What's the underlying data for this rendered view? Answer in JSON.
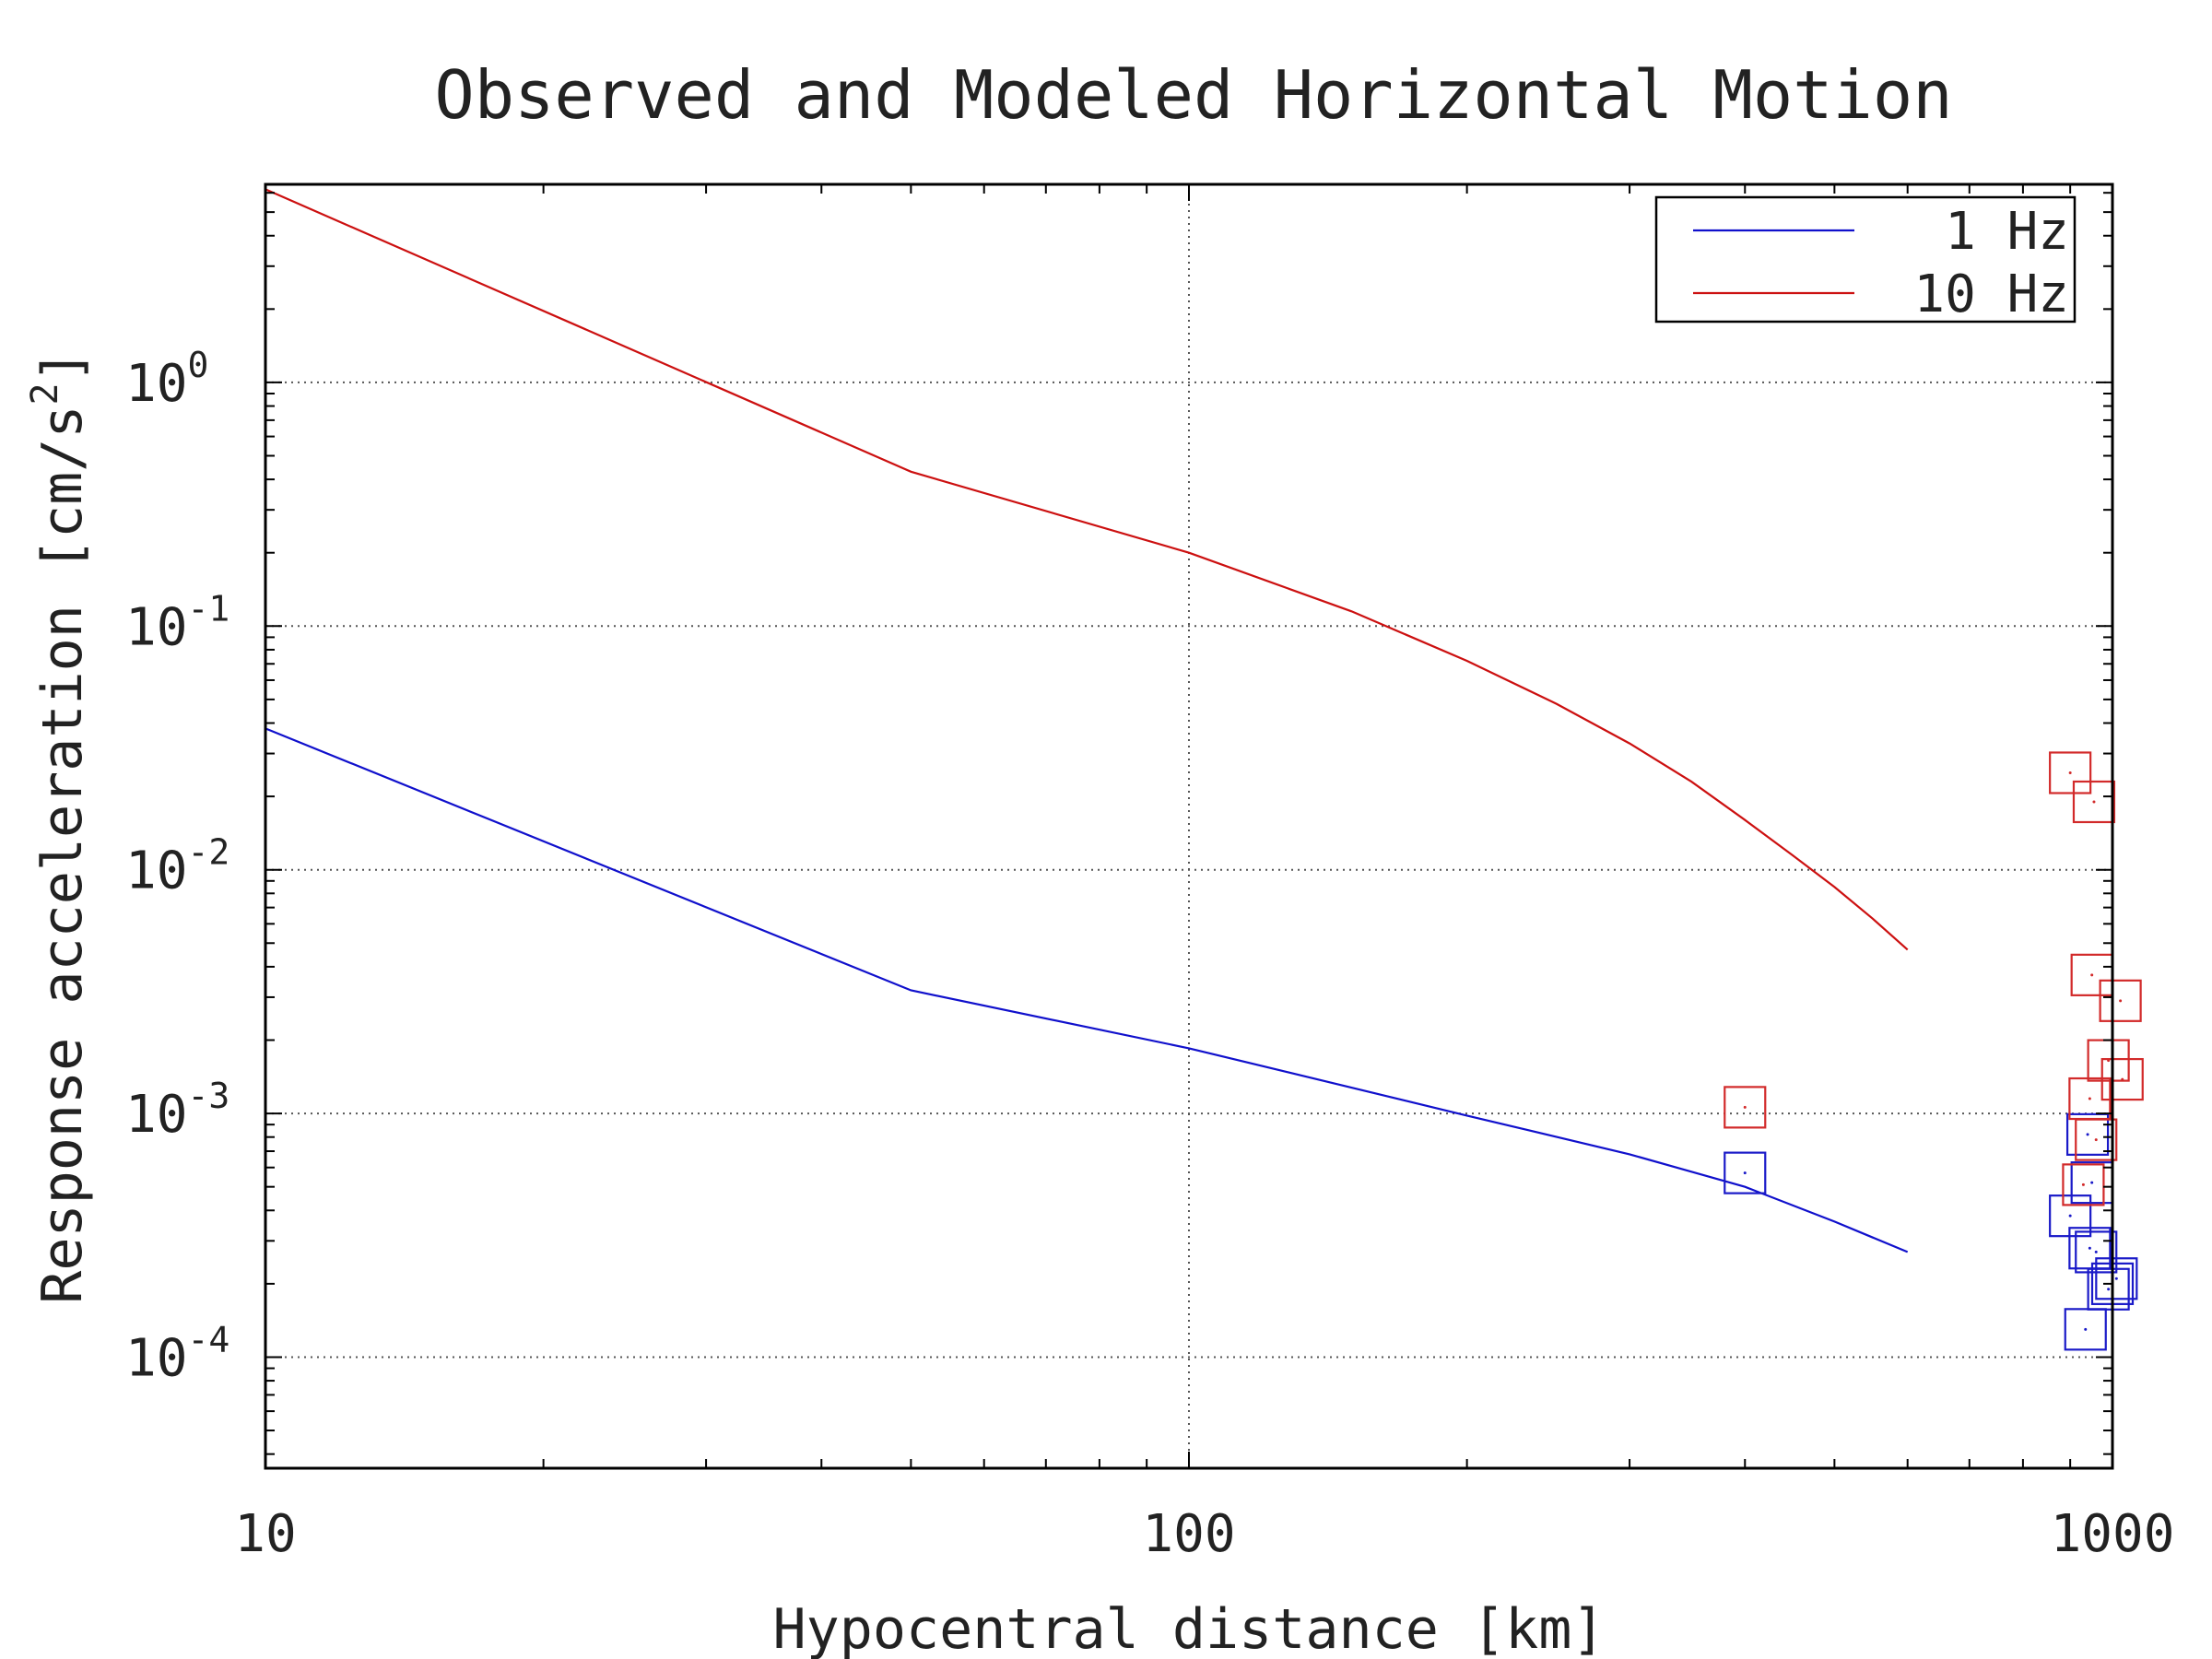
{
  "chart_data": {
    "type": "line",
    "title": "Observed and Modeled Horizontal Motion",
    "xlabel": "Hypocentral distance [km]",
    "ylabel_main": "Response acceleration [cm/s",
    "ylabel_exp": "2",
    "ylabel_tail": "]",
    "xscale": "log",
    "yscale": "log",
    "xlim": [
      10,
      1000
    ],
    "ylim": [
      3.5e-05,
      6.5
    ],
    "grid": true,
    "legend_position": "top-right",
    "x_ticks": [
      {
        "value": 10,
        "label": "10"
      },
      {
        "value": 100,
        "label": "100"
      },
      {
        "value": 1000,
        "label": "1000"
      }
    ],
    "y_ticks": [
      {
        "value": 1,
        "base": "10",
        "exp": "0"
      },
      {
        "value": 0.1,
        "base": "10",
        "exp": "-1"
      },
      {
        "value": 0.01,
        "base": "10",
        "exp": "-2"
      },
      {
        "value": 0.001,
        "base": "10",
        "exp": "-3"
      },
      {
        "value": 0.0001,
        "base": "10",
        "exp": "-4"
      }
    ],
    "series": [
      {
        "name": "1 Hz",
        "color": "#1010cc",
        "x": [
          10,
          50,
          100,
          200,
          300,
          400,
          500,
          600
        ],
        "y": [
          0.038,
          0.0032,
          0.00185,
          0.00098,
          0.00068,
          0.0005,
          0.00036,
          0.00027
        ]
      },
      {
        "name": "10 Hz",
        "color": "#cc1010",
        "x": [
          10,
          50,
          100,
          150,
          200,
          250,
          300,
          350,
          400,
          450,
          500,
          550,
          600
        ],
        "y": [
          6.2,
          0.43,
          0.2,
          0.115,
          0.072,
          0.048,
          0.033,
          0.023,
          0.016,
          0.0115,
          0.0085,
          0.0063,
          0.0047
        ]
      }
    ],
    "observations": [
      {
        "name": "1 Hz",
        "color": "#1a1ac8",
        "points": [
          [
            400,
            0.00057
          ],
          [
            900,
            0.00038
          ],
          [
            940,
            0.00082
          ],
          [
            950,
            0.00052
          ],
          [
            945,
            0.00028
          ],
          [
            960,
            0.00027
          ],
          [
            1000,
            0.0002
          ],
          [
            990,
            0.00019
          ],
          [
            1010,
            0.00021
          ],
          [
            935,
            0.00013
          ]
        ]
      },
      {
        "name": "10 Hz",
        "color": "#d22a2a",
        "points": [
          [
            400,
            0.00106
          ],
          [
            900,
            0.025
          ],
          [
            955,
            0.019
          ],
          [
            950,
            0.0037
          ],
          [
            1020,
            0.0029
          ],
          [
            990,
            0.00165
          ],
          [
            1025,
            0.00138
          ],
          [
            945,
            0.00115
          ],
          [
            960,
            0.00078
          ],
          [
            930,
            0.00051
          ]
        ]
      }
    ]
  }
}
